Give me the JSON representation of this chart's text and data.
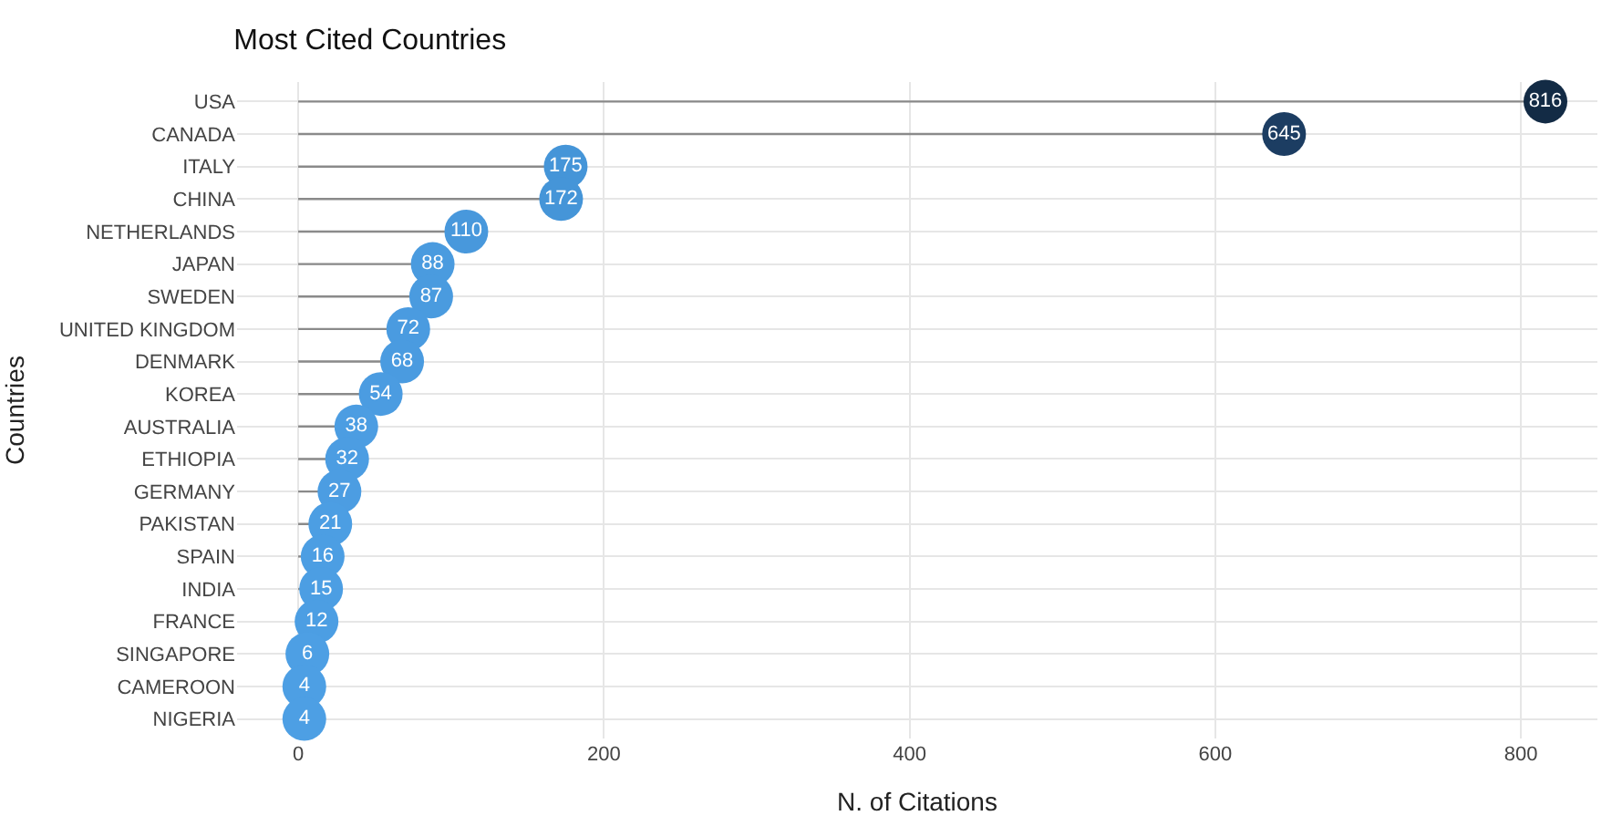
{
  "chart_data": {
    "type": "lollipop",
    "title": "Most Cited Countries",
    "xlabel": "N. of Citations",
    "ylabel": "Countries",
    "orientation": "horizontal",
    "categories": [
      "USA",
      "CANADA",
      "ITALY",
      "CHINA",
      "NETHERLANDS",
      "JAPAN",
      "SWEDEN",
      "UNITED KINGDOM",
      "DENMARK",
      "KOREA",
      "AUSTRALIA",
      "ETHIOPIA",
      "GERMANY",
      "PAKISTAN",
      "SPAIN",
      "INDIA",
      "FRANCE",
      "SINGAPORE",
      "CAMEROON",
      "NIGERIA"
    ],
    "values": [
      816,
      645,
      175,
      172,
      110,
      88,
      87,
      72,
      68,
      54,
      38,
      32,
      27,
      21,
      16,
      15,
      12,
      6,
      4,
      4
    ],
    "colors": [
      "#132b45",
      "#1c3d62",
      "#4595d8",
      "#4595d8",
      "#4898dc",
      "#4a9bdf",
      "#4a9bdf",
      "#4a9be0",
      "#4a9be0",
      "#4b9ce1",
      "#4c9de2",
      "#4c9de2",
      "#4c9de2",
      "#4c9ee3",
      "#4c9ee3",
      "#4c9ee3",
      "#4c9ee3",
      "#4d9fe4",
      "#4d9fe4",
      "#4d9fe4"
    ],
    "xlim": [
      -40,
      850
    ],
    "xticks": [
      0,
      200,
      400,
      600,
      800
    ],
    "grid": true,
    "data_labels": true,
    "marker": "circle"
  }
}
